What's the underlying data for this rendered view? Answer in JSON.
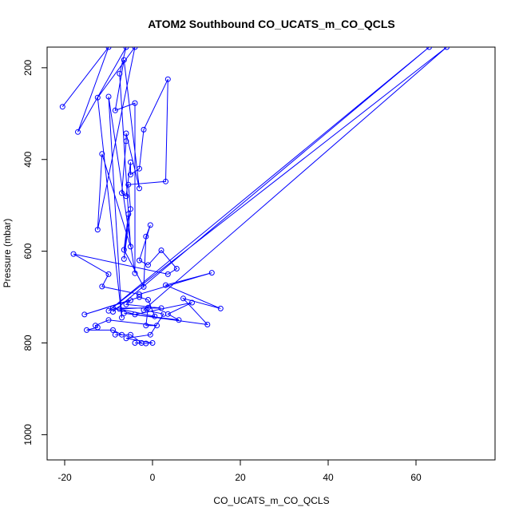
{
  "chart_data": {
    "type": "line",
    "title": "ATOM2 Southbound CO_UCATS_m_CO_QCLS",
    "xlabel": "CO_UCATS_m_CO_QCLS",
    "ylabel": "Pressure (mbar)",
    "xlim": [
      -24,
      78
    ],
    "ylim": [
      1055,
      155
    ],
    "y_reversed": true,
    "x_ticks": [
      -20,
      0,
      20,
      40,
      60
    ],
    "y_ticks": [
      200,
      400,
      600,
      800,
      1000
    ],
    "grid": false,
    "line_color": "#0000ff",
    "marker": "open-circle",
    "series": [
      {
        "values": [
          {
            "x": -20.5,
            "y": 285
          },
          {
            "x": -10,
            "y": 155
          },
          {
            "x": -17,
            "y": 340
          },
          {
            "x": -6,
            "y": 155
          },
          {
            "x": -7.5,
            "y": 213
          },
          {
            "x": -5,
            "y": 590
          },
          {
            "x": -11.5,
            "y": 388
          },
          {
            "x": -12.5,
            "y": 553
          },
          {
            "x": -4,
            "y": 155
          },
          {
            "x": -12.5,
            "y": 265
          },
          {
            "x": -7,
            "y": 745
          },
          {
            "x": -10,
            "y": 263
          },
          {
            "x": -4,
            "y": 648
          },
          {
            "x": -4,
            "y": 277
          },
          {
            "x": -8.5,
            "y": 293
          },
          {
            "x": -6.5,
            "y": 183
          },
          {
            "x": -3,
            "y": 463
          },
          {
            "x": -6,
            "y": 343
          },
          {
            "x": -6,
            "y": 360
          },
          {
            "x": -7,
            "y": 473
          },
          {
            "x": -6,
            "y": 480
          },
          {
            "x": -5,
            "y": 406
          },
          {
            "x": -5,
            "y": 433
          },
          {
            "x": -3,
            "y": 420
          },
          {
            "x": -2,
            "y": 335
          },
          {
            "x": 3.5,
            "y": 225
          },
          {
            "x": 3,
            "y": 448
          },
          {
            "x": -5.5,
            "y": 455
          },
          {
            "x": -5,
            "y": 508
          },
          {
            "x": -6.5,
            "y": 617
          },
          {
            "x": -5.5,
            "y": 519
          },
          {
            "x": -6.5,
            "y": 597
          },
          {
            "x": -2,
            "y": 678
          },
          {
            "x": -1.5,
            "y": 568
          },
          {
            "x": -0.5,
            "y": 543
          },
          {
            "x": -3,
            "y": 620
          },
          {
            "x": -1,
            "y": 630
          },
          {
            "x": 2,
            "y": 598
          },
          {
            "x": 5.5,
            "y": 638
          },
          {
            "x": 3.5,
            "y": 650
          },
          {
            "x": -18,
            "y": 606
          },
          {
            "x": -10,
            "y": 650
          },
          {
            "x": -11.5,
            "y": 677
          },
          {
            "x": -3,
            "y": 694
          },
          {
            "x": 13.5,
            "y": 647
          },
          {
            "x": 3,
            "y": 674
          },
          {
            "x": 15.5,
            "y": 725
          },
          {
            "x": 7,
            "y": 703
          },
          {
            "x": 12.5,
            "y": 760
          },
          {
            "x": -6.5,
            "y": 735
          },
          {
            "x": 6,
            "y": 750
          },
          {
            "x": 3.5,
            "y": 737
          },
          {
            "x": 9,
            "y": 712
          },
          {
            "x": -4,
            "y": 738
          },
          {
            "x": -9,
            "y": 724
          },
          {
            "x": 2,
            "y": 724
          },
          {
            "x": -6,
            "y": 716
          },
          {
            "x": -5,
            "y": 707
          },
          {
            "x": -15.5,
            "y": 738
          },
          {
            "x": -3,
            "y": 700
          },
          {
            "x": -1,
            "y": 706
          },
          {
            "x": 0.5,
            "y": 742
          },
          {
            "x": -7.5,
            "y": 726
          },
          {
            "x": -1,
            "y": 723
          },
          {
            "x": -1.5,
            "y": 762
          },
          {
            "x": 1,
            "y": 762
          },
          {
            "x": -10,
            "y": 750
          },
          {
            "x": -13,
            "y": 762
          },
          {
            "x": -12.5,
            "y": 766
          },
          {
            "x": -15,
            "y": 772
          },
          {
            "x": -9,
            "y": 772
          },
          {
            "x": -7,
            "y": 782
          },
          {
            "x": -8.5,
            "y": 782
          },
          {
            "x": -5,
            "y": 782
          },
          {
            "x": -2.5,
            "y": 800
          },
          {
            "x": -4,
            "y": 800
          },
          {
            "x": -1.5,
            "y": 801
          },
          {
            "x": 0,
            "y": 800
          },
          {
            "x": -6,
            "y": 790
          },
          {
            "x": -0.5,
            "y": 782
          },
          {
            "x": 2.5,
            "y": 737
          },
          {
            "x": -2,
            "y": 728
          },
          {
            "x": 67,
            "y": 155
          },
          {
            "x": -10,
            "y": 730
          },
          {
            "x": 63,
            "y": 155
          },
          {
            "x": -9,
            "y": 732
          }
        ]
      }
    ]
  }
}
